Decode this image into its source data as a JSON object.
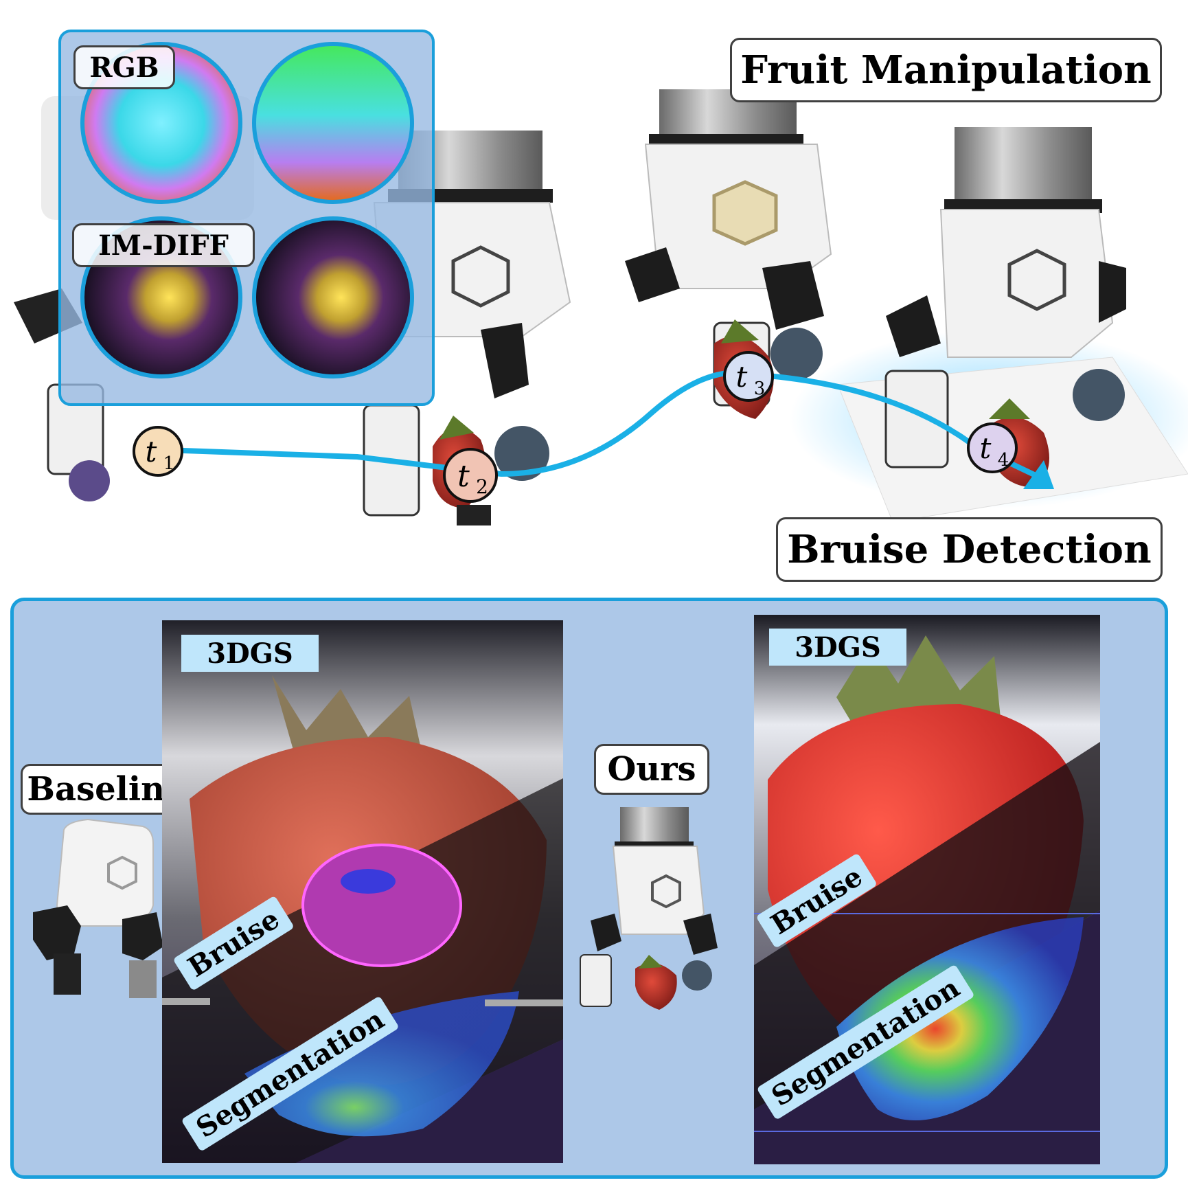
{
  "top_panel": {
    "rgb_label": "RGB",
    "imdiff_label": "IM-DIFF",
    "fruit_manipulation": "Fruit Manipulation",
    "bruise_detection": "Bruise Detection",
    "timesteps": [
      {
        "letter": "t",
        "sub": "1",
        "color": "#f7ddb8"
      },
      {
        "letter": "t",
        "sub": "2",
        "color": "#f1c4b4"
      },
      {
        "letter": "t",
        "sub": "3",
        "color": "#d6e0f5"
      },
      {
        "letter": "t",
        "sub": "4",
        "color": "#ddd2ee"
      }
    ],
    "trajectory_color": "#1ab0e6"
  },
  "bottom_panel": {
    "baseline_label": "Baseline",
    "ours_label": "Ours",
    "left_panel": {
      "tag": "3DGS",
      "bruise": "Bruise",
      "segmentation": "Segmentation"
    },
    "right_panel": {
      "tag": "3DGS",
      "bruise": "Bruise",
      "segmentation": "Segmentation"
    },
    "frame_color": "#1a9fdb",
    "background_color": "#adc8e8"
  }
}
